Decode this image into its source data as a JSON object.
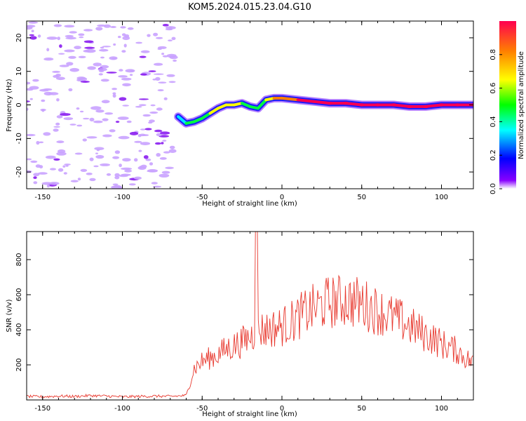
{
  "title": "KOM5.2024.015.23.04.G10",
  "chart_data": [
    {
      "type": "heatmap",
      "xlabel": "Height of straight line (km)",
      "ylabel": "Frequency (Hz)",
      "xlim": [
        -160,
        120
      ],
      "ylim": [
        -25,
        25
      ],
      "x_ticks": [
        -150,
        -100,
        -50,
        0,
        50,
        100
      ],
      "y_ticks": [
        -20,
        -10,
        0,
        10,
        20
      ],
      "ridge": {
        "x": [
          -65,
          -60,
          -55,
          -50,
          -45,
          -40,
          -35,
          -30,
          -25,
          -20,
          -15,
          -10,
          -5,
          0,
          10,
          20,
          30,
          40,
          50,
          60,
          70,
          80,
          90,
          100,
          110,
          120
        ],
        "y": [
          -3.5,
          -5.5,
          -5.0,
          -4.0,
          -2.5,
          -1.0,
          0.0,
          0.0,
          0.5,
          -0.5,
          -1.0,
          1.5,
          2.0,
          2.0,
          1.5,
          1.0,
          0.5,
          0.5,
          0.0,
          0.0,
          0.0,
          -0.5,
          -0.5,
          0.0,
          0.0,
          0.0
        ],
        "amplitude": [
          0.3,
          0.45,
          0.5,
          0.55,
          0.55,
          0.6,
          0.65,
          0.7,
          0.6,
          0.5,
          0.5,
          0.6,
          0.7,
          0.75,
          0.85,
          0.9,
          0.95,
          0.95,
          0.95,
          0.95,
          0.95,
          0.95,
          0.95,
          0.95,
          0.95,
          0.95
        ]
      },
      "noise_region_x": [
        -160,
        -67
      ],
      "colorbar": {
        "label": "Normalized spectral amplitude",
        "range": [
          0,
          1
        ],
        "ticks": [
          "0.0",
          "0.2",
          "0.4",
          "0.6",
          "0.8"
        ],
        "colors": [
          "#ffffff",
          "#8800ff",
          "#0000ff",
          "#00ffff",
          "#00ff00",
          "#ffff00",
          "#ff8000",
          "#ff0040"
        ]
      }
    },
    {
      "type": "line",
      "xlabel": "Height of straight line (km)",
      "ylabel": "SNR (v/v)",
      "xlim": [
        -160,
        120
      ],
      "ylim": [
        0,
        960
      ],
      "x_ticks": [
        -150,
        -100,
        -50,
        0,
        50,
        100
      ],
      "y_ticks": [
        200,
        400,
        600,
        800
      ],
      "color": "#e8392f",
      "series": [
        {
          "x": [
            -160,
            -150,
            -140,
            -130,
            -120,
            -110,
            -100,
            -90,
            -80,
            -70,
            -60,
            -57,
            -55,
            -50,
            -45,
            -40,
            -35,
            -30,
            -25,
            -20,
            -17,
            -15,
            -10,
            -5,
            0,
            5,
            10,
            15,
            20,
            25,
            30,
            35,
            40,
            45,
            50,
            55,
            60,
            65,
            70,
            75,
            80,
            85,
            90,
            95,
            100,
            105,
            110,
            115,
            120
          ],
          "values": [
            20,
            18,
            22,
            20,
            25,
            22,
            18,
            20,
            22,
            20,
            25,
            120,
            180,
            220,
            240,
            260,
            290,
            310,
            330,
            360,
            380,
            400,
            400,
            410,
            420,
            440,
            470,
            500,
            520,
            540,
            560,
            560,
            570,
            560,
            550,
            530,
            510,
            490,
            470,
            450,
            420,
            400,
            370,
            350,
            320,
            300,
            280,
            240,
            210
          ],
          "spike": {
            "x": -16,
            "y": 960
          }
        }
      ]
    }
  ]
}
